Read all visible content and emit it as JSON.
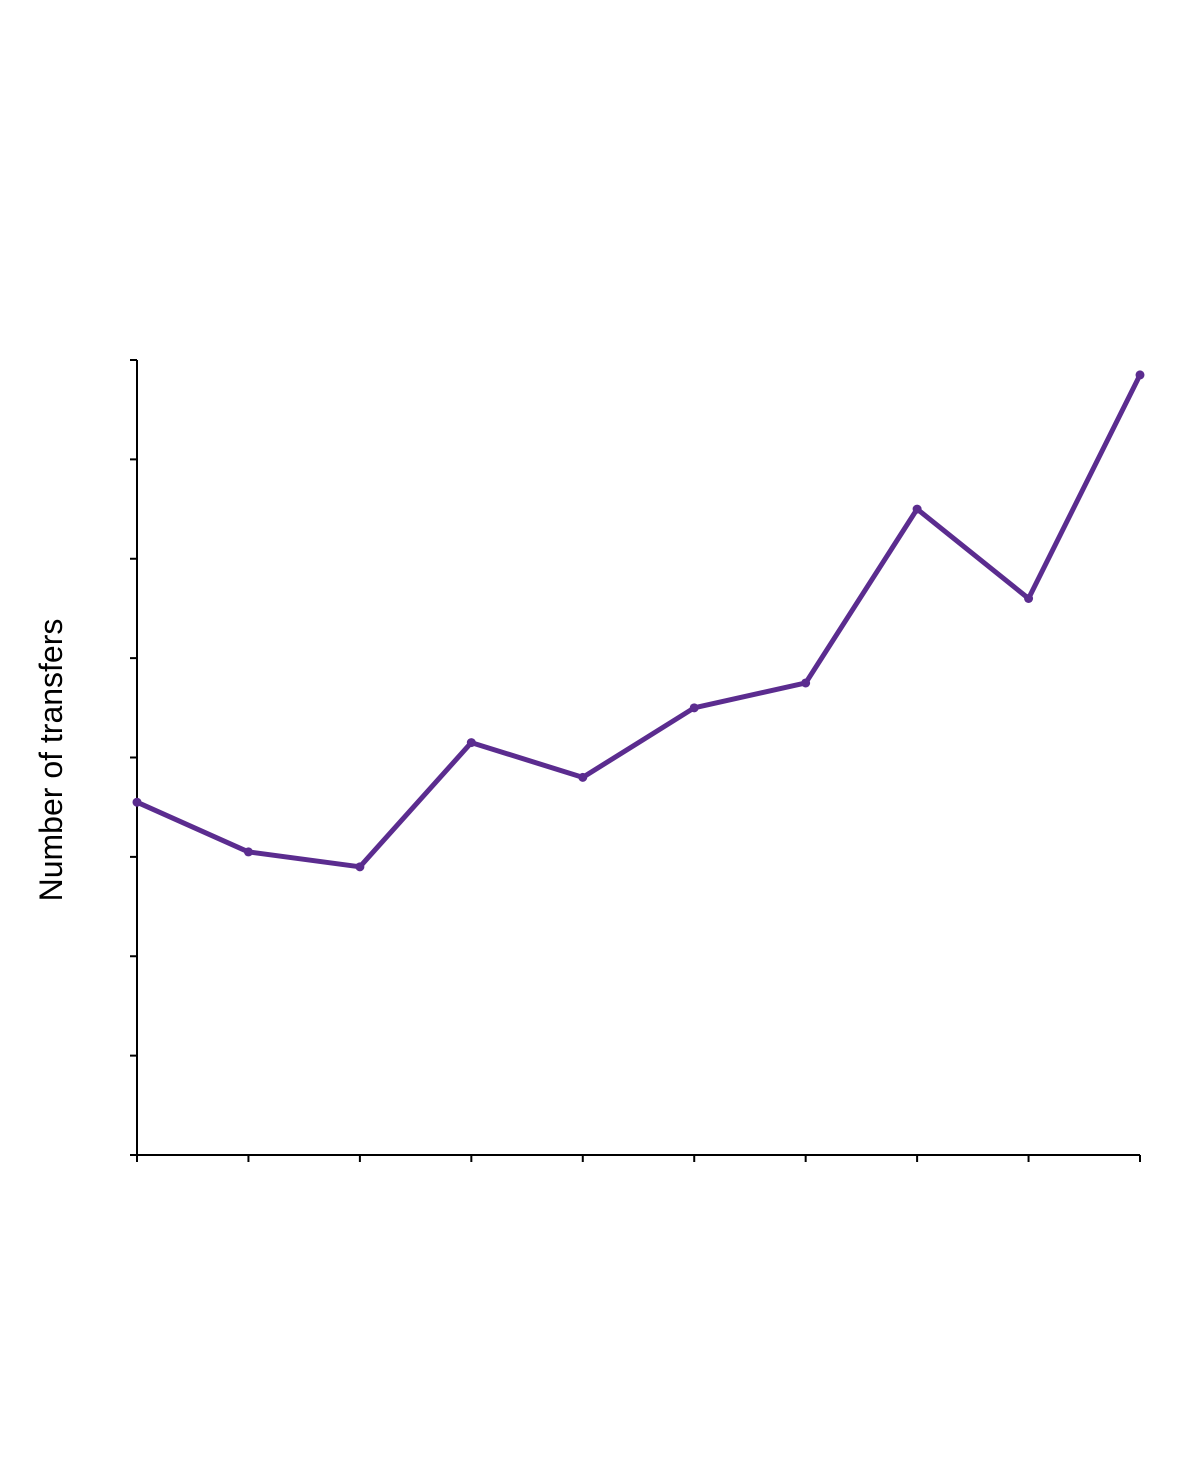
{
  "chart_data": {
    "type": "line",
    "title": "",
    "xlabel": "",
    "ylabel": "Number of transfers",
    "x": [
      1,
      2,
      3,
      4,
      5,
      6,
      7,
      8,
      9,
      10
    ],
    "xlim": [
      1,
      10
    ],
    "ylim": [
      0,
      8
    ],
    "y_tick_count": 9,
    "grid": false,
    "legend": "none",
    "series": [
      {
        "color": "#5b2c8f",
        "values": [
          3.55,
          3.05,
          2.9,
          4.15,
          3.8,
          4.5,
          4.75,
          6.5,
          5.6,
          7.85
        ]
      }
    ]
  }
}
